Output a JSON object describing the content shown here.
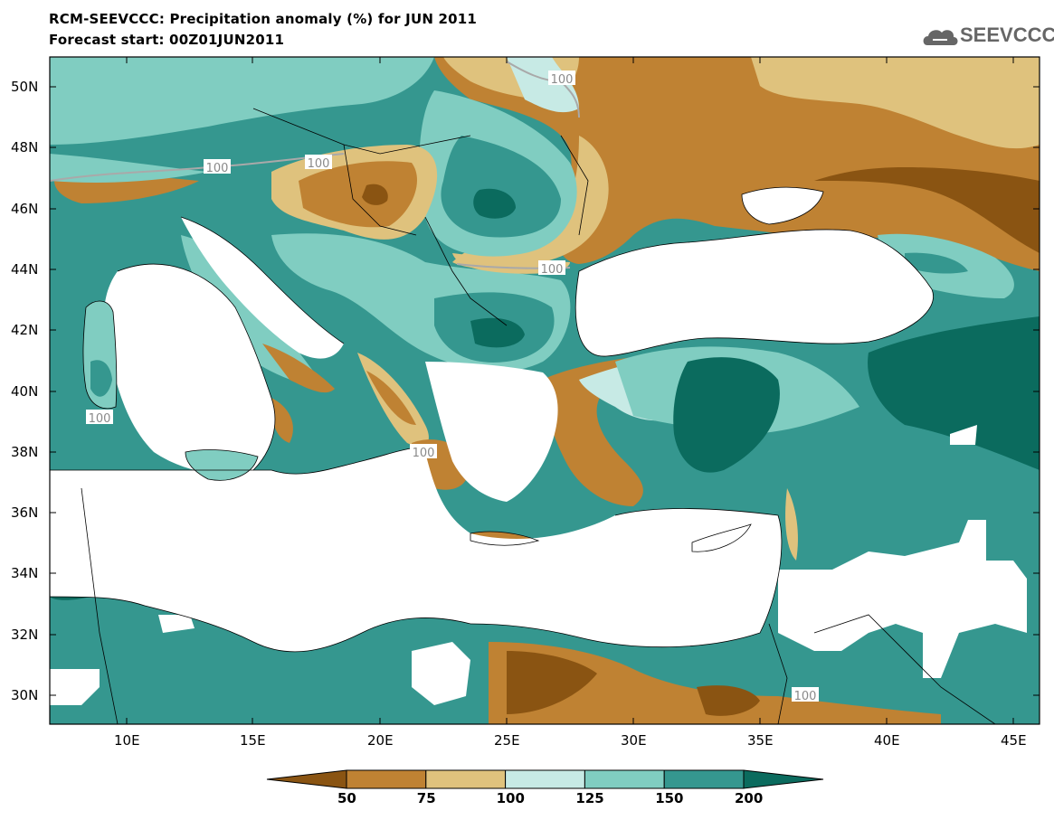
{
  "header": {
    "title_line1": "RCM-SEEVCCC: Precipitation anomaly (%) for JUN 2011",
    "title_line2": "Forecast start: 00Z01JUN2011",
    "logo_text": "SEEVCCC",
    "logo_icon": "cloud-icon"
  },
  "map": {
    "lat_labels": [
      "50N",
      "48N",
      "46N",
      "44N",
      "42N",
      "40N",
      "38N",
      "36N",
      "34N",
      "32N",
      "30N"
    ],
    "lon_labels": [
      "10E",
      "15E",
      "20E",
      "25E",
      "30E",
      "35E",
      "40E",
      "45E"
    ],
    "contour_labels": [
      "100",
      "100",
      "100",
      "100",
      "100",
      "100",
      "100"
    ]
  },
  "legend": {
    "levels": [
      "50",
      "75",
      "100",
      "125",
      "150",
      "200"
    ],
    "colors": [
      "#8a5412",
      "#bf8233",
      "#dfc27d",
      "#c7eae5",
      "#80cdc1",
      "#35978f",
      "#0b6b5e"
    ]
  }
}
